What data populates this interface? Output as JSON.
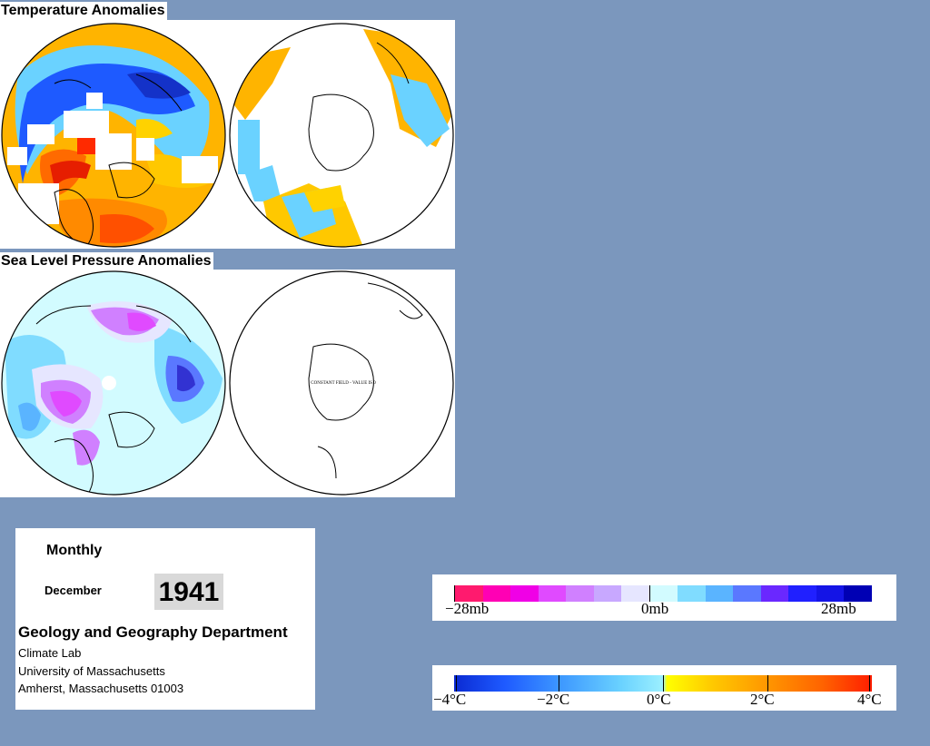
{
  "titles": {
    "temperature": "Temperature Anomalies",
    "pressure": "Sea Level Pressure Anomalies"
  },
  "pressure_map": {
    "south_note": "CONSTANT FIELD - VALUE IS 0"
  },
  "info": {
    "frequency": "Monthly",
    "month": "December",
    "year": "1941",
    "department": "Geology and Geography Department",
    "lab": "Climate Lab",
    "university": "University of Massachusetts",
    "city": "Amherst, Massachusetts 01003"
  },
  "pressure_legend": {
    "labels": [
      "−28mb",
      "0mb",
      "28mb"
    ],
    "colors": [
      "#ff1a6e",
      "#ff00b4",
      "#f000e6",
      "#e04aff",
      "#d080ff",
      "#c8a8ff",
      "#e6e6ff",
      "#d2fbff",
      "#80dcff",
      "#5ab4ff",
      "#5a78ff",
      "#6a28ff",
      "#2020ff",
      "#1414e6",
      "#0000b4"
    ]
  },
  "temperature_legend": {
    "labels": [
      "−4°C",
      "−2°C",
      "0°C",
      "2°C",
      "4°C"
    ]
  },
  "colors": {
    "background": "#7b97bd",
    "panel": "#ffffff",
    "cold": "#1e5aff",
    "cool": "#6ad2ff",
    "warm": "#ffb400",
    "hot": "#ff5a00",
    "year_box": "#d9d9d9"
  }
}
